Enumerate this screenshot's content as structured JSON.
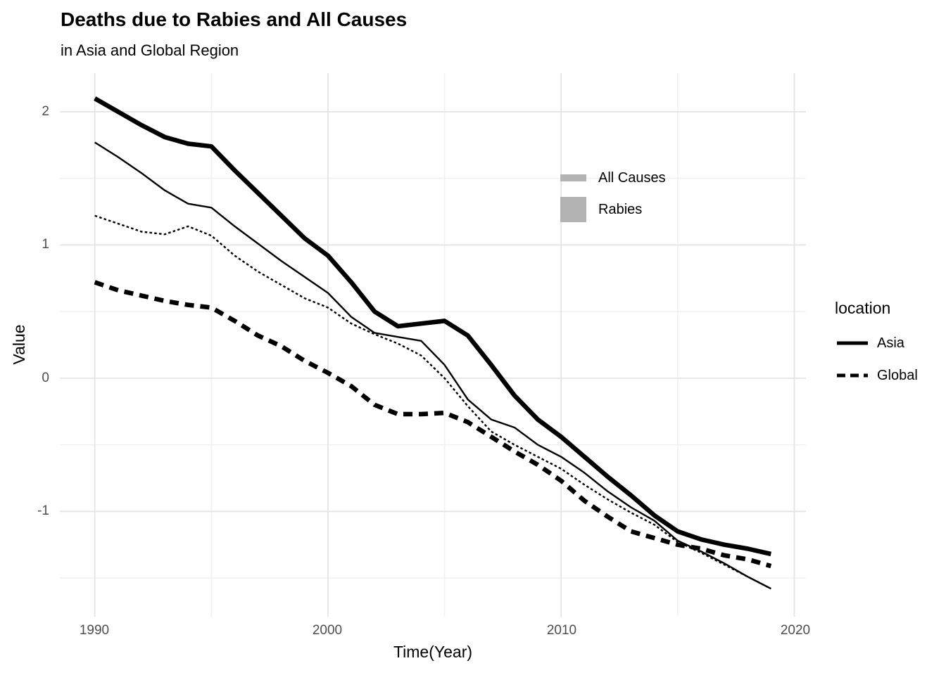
{
  "chart_data": {
    "type": "line",
    "title": "Deaths due to Rabies and All Causes",
    "subtitle": "in Asia and Global Region",
    "xlabel": "Time(Year)",
    "ylabel": "Value",
    "xlim": [
      1988.5,
      2020.5
    ],
    "ylim": [
      -1.79,
      2.29
    ],
    "grid": "on",
    "x_ticks": [
      1990,
      2000,
      2010,
      2020
    ],
    "y_ticks": [
      2,
      1,
      0,
      -1
    ],
    "x_minor_ticks": [
      1995,
      2005,
      2015
    ],
    "y_minor_ticks": [
      1.5,
      0.5,
      -0.5,
      -1.5
    ],
    "line_color": "#000000",
    "x": [
      1990,
      1991,
      1992,
      1993,
      1994,
      1995,
      1996,
      1997,
      1998,
      1999,
      2000,
      2001,
      2002,
      2003,
      2004,
      2005,
      2006,
      2007,
      2008,
      2009,
      2010,
      2011,
      2012,
      2013,
      2014,
      2015,
      2016,
      2017,
      2018,
      2019
    ],
    "series": [
      {
        "name": "Asia Rabies",
        "location": "Asia",
        "cause": "Rabies",
        "linetype": "solid",
        "size": "thick",
        "values": [
          2.1,
          2.0,
          1.9,
          1.81,
          1.76,
          1.74,
          1.56,
          1.39,
          1.22,
          1.05,
          0.92,
          0.72,
          0.5,
          0.39,
          0.41,
          0.43,
          0.32,
          0.1,
          -0.13,
          -0.31,
          -0.44,
          -0.59,
          -0.74,
          -0.88,
          -1.03,
          -1.15,
          -1.21,
          -1.25,
          -1.28,
          -1.32
        ]
      },
      {
        "name": "Asia All Causes",
        "location": "Asia",
        "cause": "All Causes",
        "linetype": "solid",
        "size": "thin",
        "values": [
          1.77,
          1.66,
          1.54,
          1.41,
          1.31,
          1.28,
          1.14,
          1.01,
          0.88,
          0.76,
          0.64,
          0.46,
          0.34,
          0.31,
          0.28,
          0.1,
          -0.16,
          -0.31,
          -0.37,
          -0.5,
          -0.59,
          -0.71,
          -0.85,
          -0.97,
          -1.07,
          -1.22,
          -1.3,
          -1.39,
          -1.49,
          -1.58
        ]
      },
      {
        "name": "Global All Causes",
        "location": "Global",
        "cause": "All Causes",
        "linetype": "dotted",
        "size": "thin",
        "values": [
          1.22,
          1.16,
          1.1,
          1.08,
          1.14,
          1.07,
          0.92,
          0.8,
          0.7,
          0.6,
          0.53,
          0.41,
          0.33,
          0.26,
          0.17,
          0.0,
          -0.21,
          -0.4,
          -0.5,
          -0.59,
          -0.68,
          -0.8,
          -0.91,
          -1.01,
          -1.1,
          -1.23,
          -1.31,
          -1.4,
          -1.49,
          -1.58
        ]
      },
      {
        "name": "Global Rabies",
        "location": "Global",
        "cause": "Rabies",
        "linetype": "dashed",
        "size": "thick",
        "values": [
          0.72,
          0.66,
          0.62,
          0.58,
          0.55,
          0.53,
          0.43,
          0.32,
          0.24,
          0.13,
          0.04,
          -0.06,
          -0.2,
          -0.27,
          -0.27,
          -0.26,
          -0.33,
          -0.44,
          -0.55,
          -0.65,
          -0.77,
          -0.92,
          -1.04,
          -1.15,
          -1.2,
          -1.25,
          -1.28,
          -1.33,
          -1.36,
          -1.41
        ]
      }
    ],
    "size_legend": {
      "swatch_color": "#b3b3b3",
      "entries": [
        {
          "label": "All Causes",
          "size": "thin"
        },
        {
          "label": "Rabies",
          "size": "thick"
        }
      ]
    },
    "location_legend": {
      "title": "location",
      "entries": [
        {
          "label": "Asia",
          "linetype": "solid"
        },
        {
          "label": "Global",
          "linetype": "dashed"
        }
      ]
    },
    "colors": {
      "grid_major": "#e4e4e4",
      "grid_minor": "#efefef",
      "tick_label": "#4d4d4d"
    }
  }
}
